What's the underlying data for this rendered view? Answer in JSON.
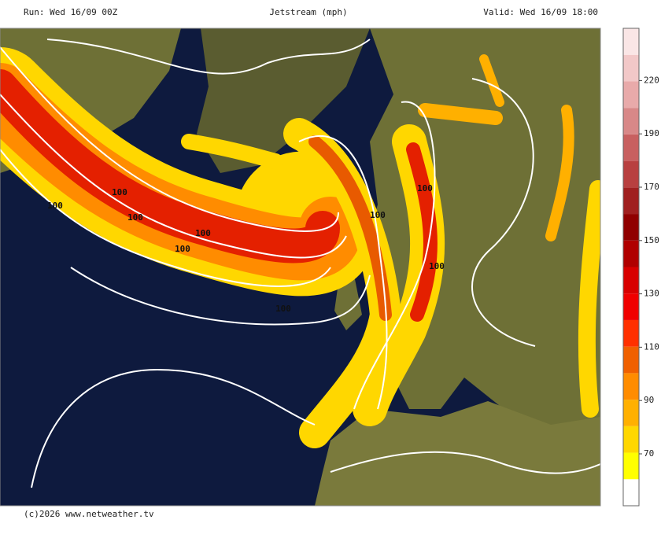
{
  "header": {
    "run": "Run: Wed 16/09 00Z",
    "title": "Jetstream (mph)",
    "valid": "Valid: Wed 16/09 18:00"
  },
  "colorbar": {
    "labels": [
      "70",
      "90",
      "110",
      "130",
      "150",
      "170",
      "190",
      "220"
    ]
  },
  "map": {
    "contour_labels": [
      "100",
      "100",
      "100",
      "100",
      "100",
      "100",
      "100",
      "100",
      "100"
    ]
  },
  "footer": {
    "credit": "(c)2026 www.netweather.tv"
  }
}
